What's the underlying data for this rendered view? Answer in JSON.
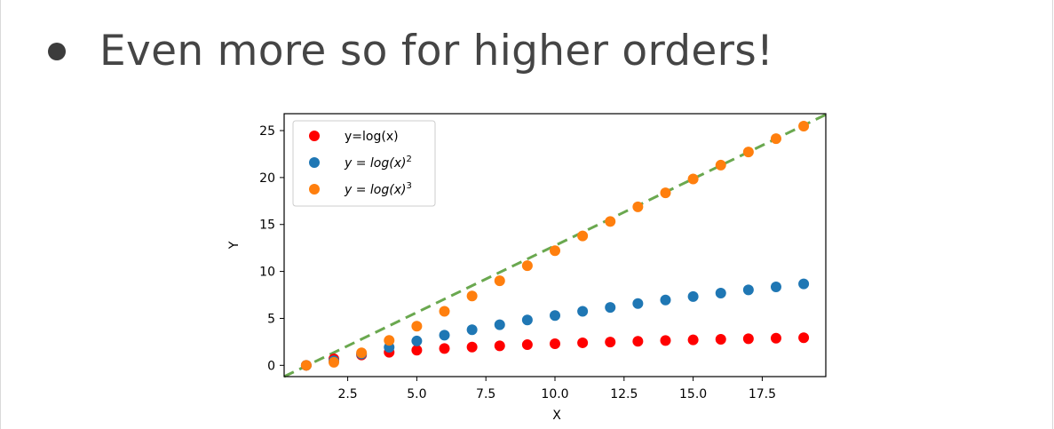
{
  "slide": {
    "bullet_text": "Even more so for higher orders!"
  },
  "colors": {
    "red": "#ff0000",
    "blue": "#1f77b4",
    "orange": "#ff7f0e",
    "dashed_line": "#6aa84f"
  },
  "chart_data": {
    "type": "scatter",
    "xlabel": "X",
    "ylabel": "Y",
    "xlim": [
      0.2,
      19.8
    ],
    "ylim": [
      -1.2,
      26.8
    ],
    "xticks": [
      "2.5",
      "5.0",
      "7.5",
      "10.0",
      "12.5",
      "15.0",
      "17.5"
    ],
    "yticks": [
      "0",
      "5",
      "10",
      "15",
      "20",
      "25"
    ],
    "legend_position": "top-left",
    "grid": false,
    "x": [
      1,
      2,
      3,
      4,
      5,
      6,
      7,
      8,
      9,
      10,
      11,
      12,
      13,
      14,
      15,
      16,
      17,
      18,
      19
    ],
    "series": [
      {
        "name": "y=log(x)",
        "color": "#ff0000",
        "values": [
          0.0,
          0.69,
          1.1,
          1.39,
          1.61,
          1.79,
          1.95,
          2.08,
          2.2,
          2.3,
          2.4,
          2.48,
          2.56,
          2.64,
          2.71,
          2.77,
          2.83,
          2.89,
          2.94
        ]
      },
      {
        "name": "y = log(x)^2",
        "color": "#1f77b4",
        "values": [
          0.0,
          0.48,
          1.21,
          1.92,
          2.59,
          3.21,
          3.79,
          4.32,
          4.83,
          5.3,
          5.75,
          6.17,
          6.58,
          6.96,
          7.33,
          7.69,
          8.03,
          8.35,
          8.67
        ]
      },
      {
        "name": "y = log(x)^3",
        "color": "#ff7f0e",
        "values": [
          0.0,
          0.33,
          1.33,
          2.66,
          4.17,
          5.75,
          7.38,
          9.0,
          10.61,
          12.21,
          13.78,
          15.32,
          16.88,
          18.37,
          19.85,
          21.32,
          22.72,
          24.14,
          25.48
        ]
      }
    ],
    "reference_line": {
      "style": "dashed",
      "color": "#6aa84f",
      "x": [
        0.2,
        19.8
      ],
      "y": [
        -1.2,
        26.7
      ]
    },
    "legend": [
      {
        "prefix": "y=log(x)",
        "sup": ""
      },
      {
        "prefix": "y = log(x)",
        "sup": "2"
      },
      {
        "prefix": "y = log(x)",
        "sup": "3"
      }
    ]
  }
}
